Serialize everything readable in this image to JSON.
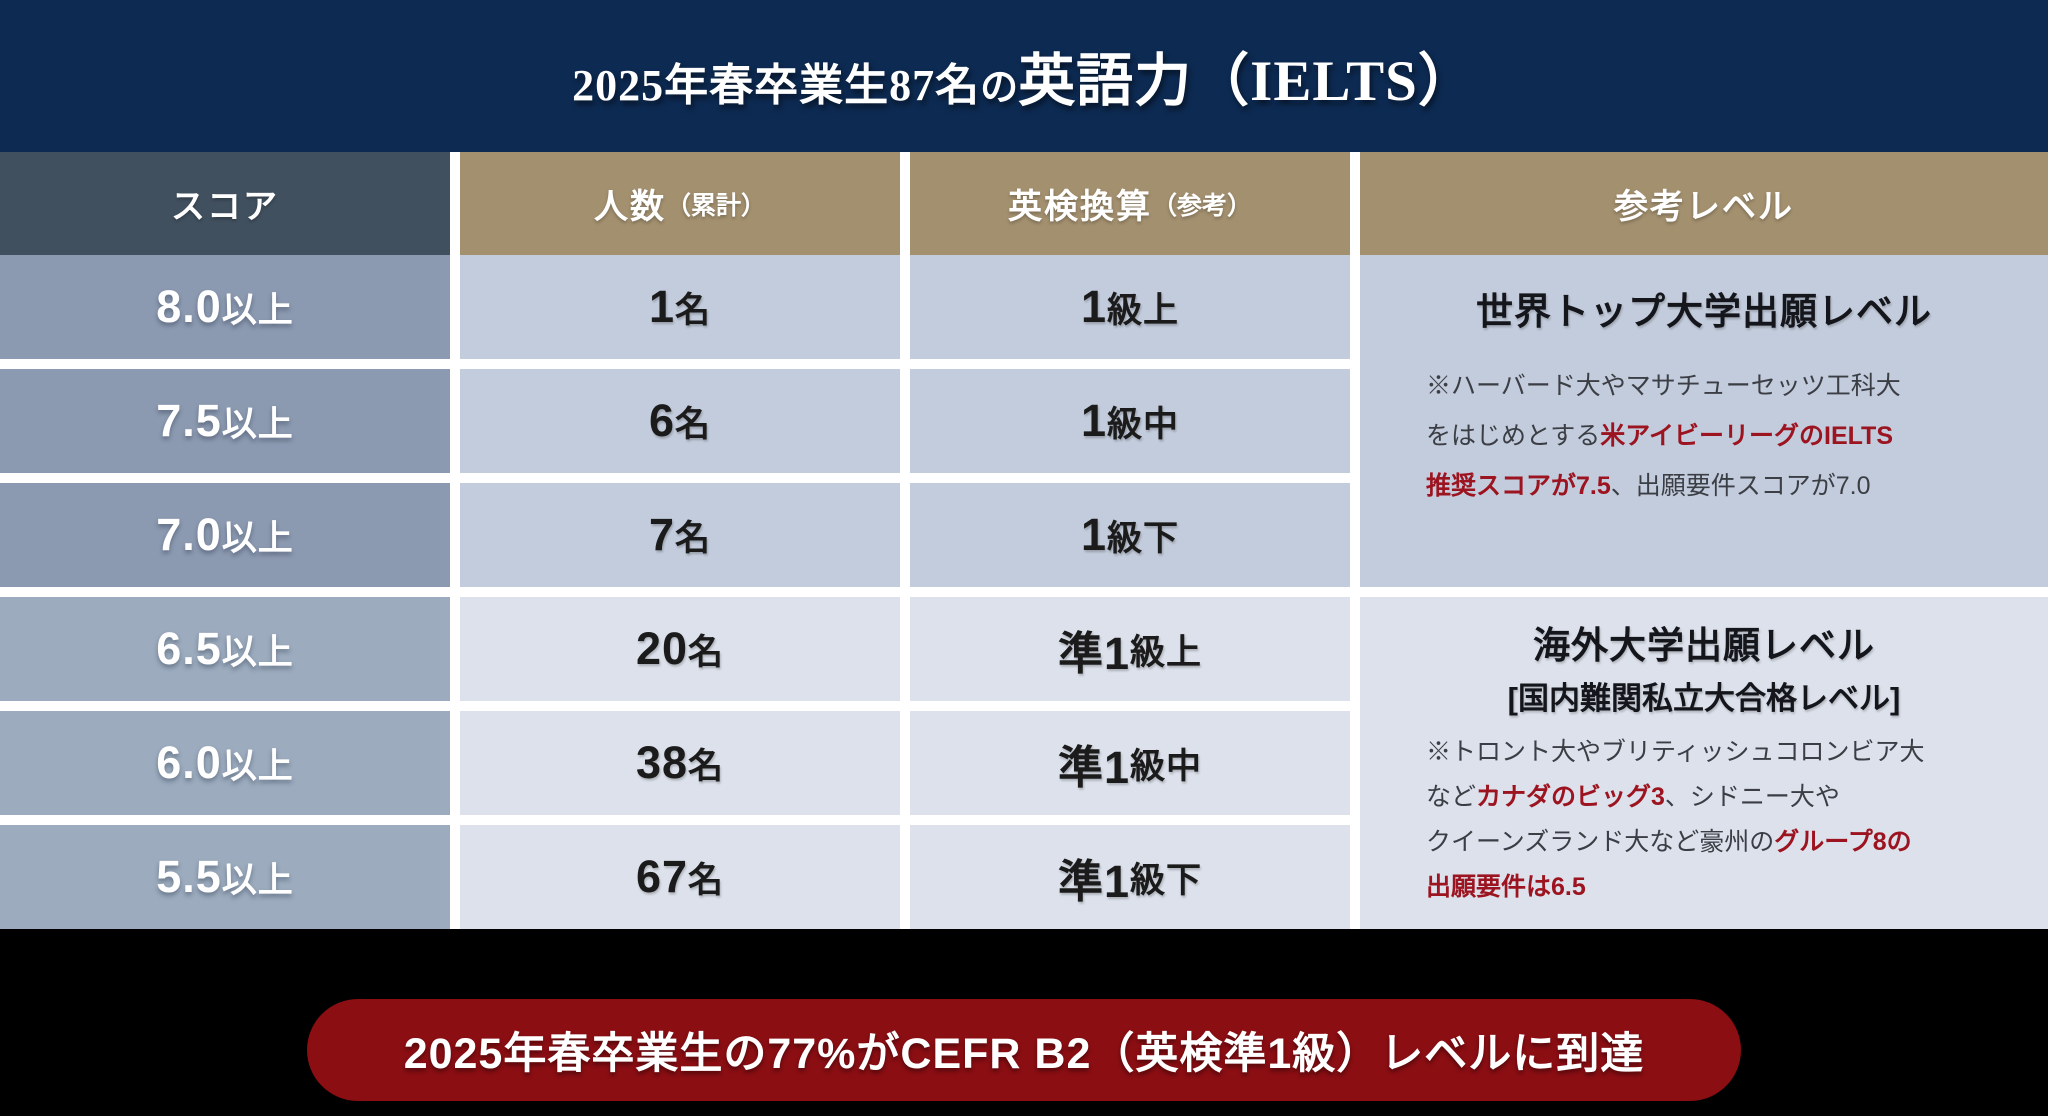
{
  "title": {
    "prefix": "2025年春卒業生87名",
    "particle": "の",
    "emphasis": "英語力（IELTS）"
  },
  "table": {
    "headers": [
      {
        "label": "スコア",
        "sub": ""
      },
      {
        "label": "人数",
        "sub": "（累計）"
      },
      {
        "label": "英検換算",
        "sub": "（参考）"
      },
      {
        "label": "参考レベル",
        "sub": ""
      }
    ],
    "rows": [
      {
        "score_num": "8.0",
        "score_suffix": "以上",
        "count_num": "1",
        "count_unit": "名",
        "eiken_big": "1",
        "eiken_small": "級上",
        "group": "top"
      },
      {
        "score_num": "7.5",
        "score_suffix": "以上",
        "count_num": "6",
        "count_unit": "名",
        "eiken_big": "1",
        "eiken_small": "級中",
        "group": "top"
      },
      {
        "score_num": "7.0",
        "score_suffix": "以上",
        "count_num": "7",
        "count_unit": "名",
        "eiken_big": "1",
        "eiken_small": "級下",
        "group": "top"
      },
      {
        "score_num": "6.5",
        "score_suffix": "以上",
        "count_num": "20",
        "count_unit": "名",
        "eiken_big": "準1",
        "eiken_small": "級上",
        "group": "bottom"
      },
      {
        "score_num": "6.0",
        "score_suffix": "以上",
        "count_num": "38",
        "count_unit": "名",
        "eiken_big": "準1",
        "eiken_small": "級中",
        "group": "bottom"
      },
      {
        "score_num": "5.5",
        "score_suffix": "以上",
        "count_num": "67",
        "count_unit": "名",
        "eiken_big": "準1",
        "eiken_small": "級下",
        "group": "bottom"
      }
    ]
  },
  "levels": [
    {
      "title": "世界トップ大学出願レベル",
      "subtitle": "",
      "note_lines": [
        [
          {
            "t": "※ハーバード大やマサチューセッツ工科大",
            "red": false
          }
        ],
        [
          {
            "t": "をはじめとする",
            "red": false
          },
          {
            "t": "米アイビーリーグのIELTS",
            "red": true
          }
        ],
        [
          {
            "t": "推奨スコアが7.5",
            "red": true
          },
          {
            "t": "、出願要件スコアが7.0",
            "red": false
          }
        ]
      ]
    },
    {
      "title": "海外大学出願レベル",
      "subtitle": "[国内難関私立大合格レベル]",
      "note_lines": [
        [
          {
            "t": "※トロント大やブリティッシュコロンビア大",
            "red": false
          }
        ],
        [
          {
            "t": "など",
            "red": false
          },
          {
            "t": "カナダのビッグ3",
            "red": true
          },
          {
            "t": "、シドニー大や",
            "red": false
          }
        ],
        [
          {
            "t": "クイーンズランド大など豪州の",
            "red": false
          },
          {
            "t": "グループ8の",
            "red": true
          }
        ],
        [
          {
            "t": "出願要件は6.5",
            "red": true
          }
        ]
      ]
    }
  ],
  "banner": {
    "text": "2025年春卒業生の77%がCEFR B2（英検準1級）レベルに到達"
  },
  "colors": {
    "navy": "#0d2a52",
    "slate": "#41505f",
    "tan": "#a3906f",
    "score_cell_top": "#8c9ab1",
    "score_cell_bottom": "#9cabbe",
    "cell_top": "#c3ccdc",
    "cell_bottom": "#dce1eb",
    "note_red": "#9c1420",
    "banner_red": "#8b0e13",
    "bottom_bg": "#000000"
  },
  "chart_data": {
    "type": "table",
    "title": "2025年春卒業生87名の英語力（IELTS）",
    "columns": [
      "スコア",
      "人数（累計）",
      "英検換算（参考）",
      "参考レベル"
    ],
    "rows": [
      [
        "8.0以上",
        "1名",
        "1級上",
        "世界トップ大学出願レベル"
      ],
      [
        "7.5以上",
        "6名",
        "1級中",
        "世界トップ大学出願レベル"
      ],
      [
        "7.0以上",
        "7名",
        "1級下",
        "世界トップ大学出願レベル"
      ],
      [
        "6.5以上",
        "20名",
        "準1級上",
        "海外大学出願レベル [国内難関私立大合格レベル]"
      ],
      [
        "6.0以上",
        "38名",
        "準1級中",
        "海外大学出願レベル [国内難関私立大合格レベル]"
      ],
      [
        "5.5以上",
        "67名",
        "準1級下",
        "海外大学出願レベル [国内難関私立大合格レベル]"
      ]
    ],
    "notes": [
      "※ハーバード大やマサチューセッツ工科大をはじめとする米アイビーリーグのIELTS推奨スコアが7.5、出願要件スコアが7.0",
      "※トロント大やブリティッシュコロンビア大などカナダのビッグ3、シドニー大やクイーンズランド大など豪州のグループ8の出願要件は6.5"
    ],
    "footer": "2025年春卒業生の77%がCEFR B2（英検準1級）レベルに到達"
  }
}
